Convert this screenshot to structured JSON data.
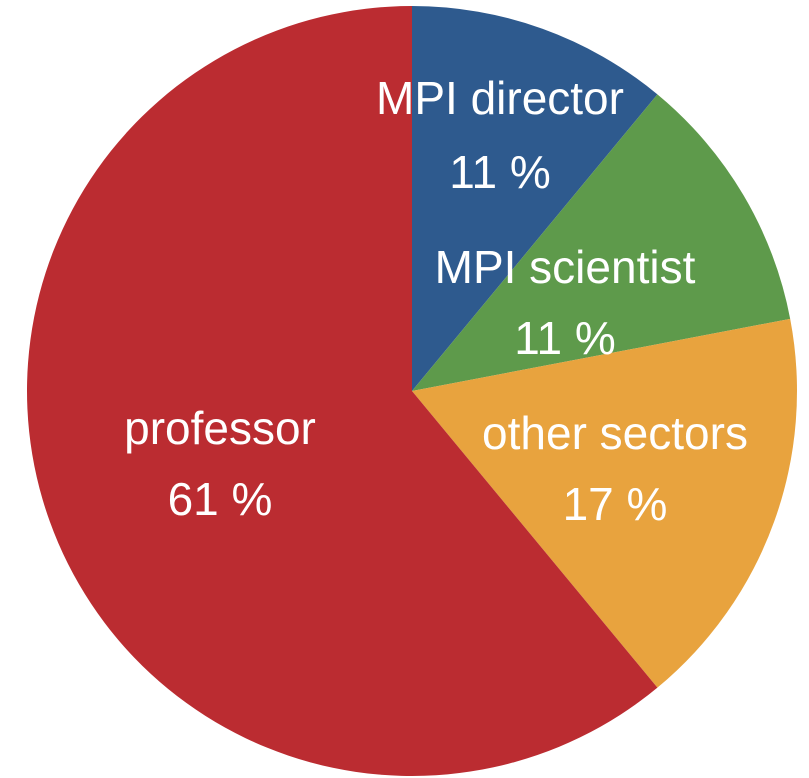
{
  "chart_data": {
    "type": "pie",
    "categories": [
      "MPI director",
      "MPI scientist",
      "other sectors",
      "professor"
    ],
    "values": [
      11,
      11,
      17,
      61
    ],
    "value_labels": [
      "11 %",
      "11 %",
      "17 %",
      "61 %"
    ],
    "colors": [
      "#2e5a8e",
      "#5e9a4b",
      "#e8a33e",
      "#bb2c31"
    ]
  }
}
